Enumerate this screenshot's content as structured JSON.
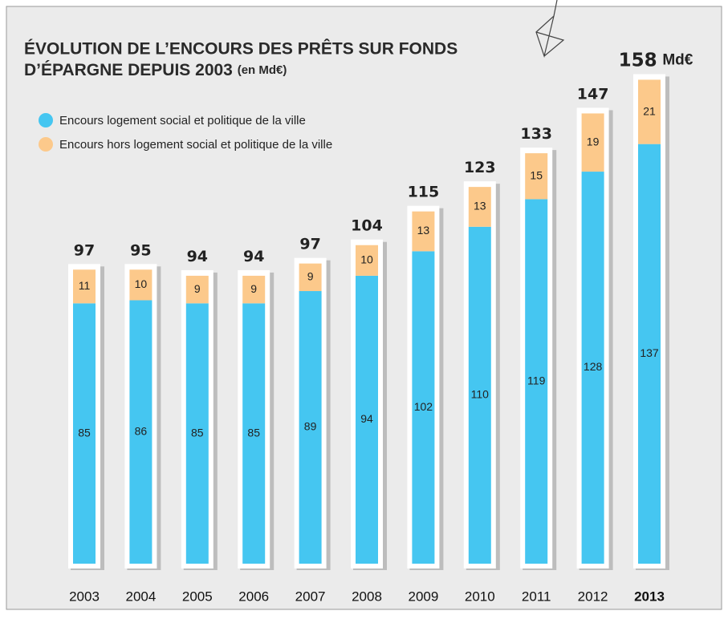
{
  "chart_data": {
    "type": "stacked-bar",
    "title": [
      "ÉVOLUTION DE L’ENCOURS DES PRÊTS SUR FONDS",
      "D’ÉPARGNE DEPUIS 2003"
    ],
    "title_unit": "(en Md€)",
    "categories": [
      "2003",
      "2004",
      "2005",
      "2006",
      "2007",
      "2008",
      "2009",
      "2010",
      "2011",
      "2012",
      "2013"
    ],
    "series": [
      {
        "name": "Encours logement social et politique de la ville",
        "color": "#45c6f1",
        "values": [
          85,
          86,
          85,
          85,
          89,
          94,
          102,
          110,
          119,
          128,
          137
        ]
      },
      {
        "name": "Encours hors logement social et politique de la ville",
        "color": "#fcc98b",
        "values": [
          11,
          10,
          9,
          9,
          9,
          10,
          13,
          13,
          15,
          19,
          21
        ]
      }
    ],
    "totals": [
      97,
      95,
      94,
      94,
      97,
      104,
      115,
      123,
      133,
      147,
      158
    ],
    "total_unit": "Md€"
  }
}
